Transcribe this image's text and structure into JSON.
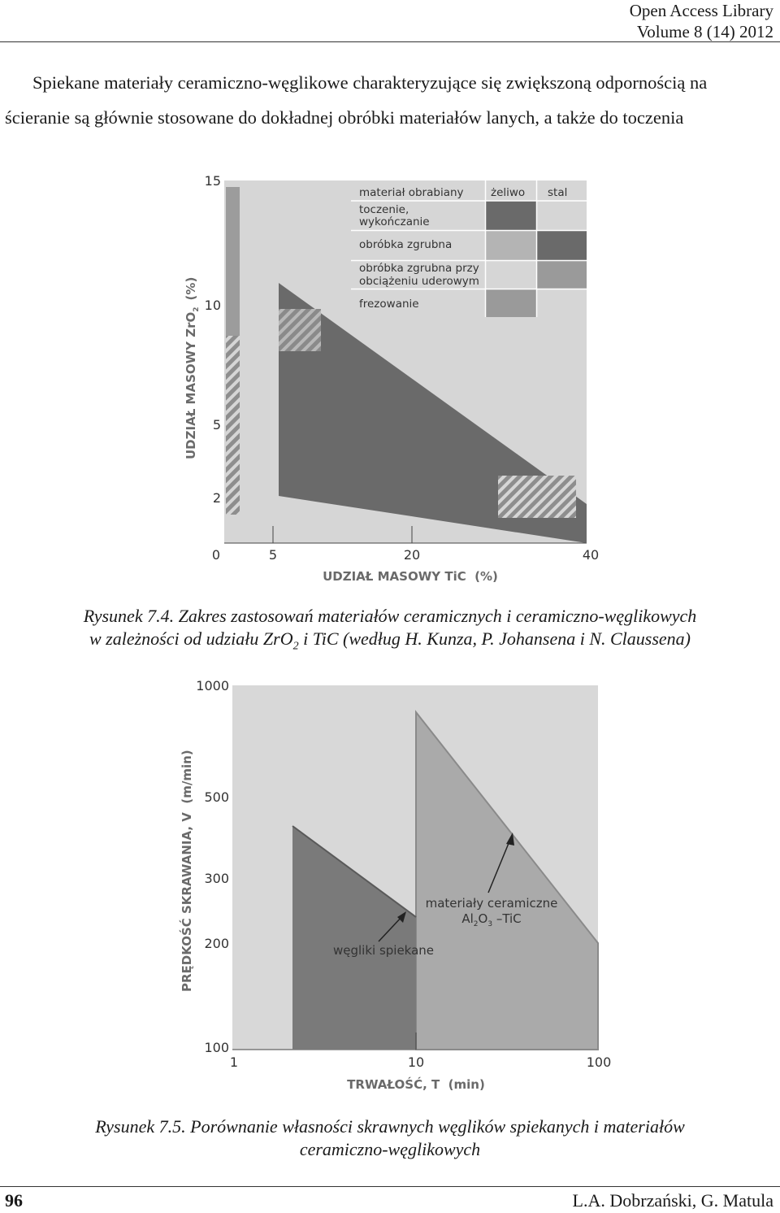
{
  "header": {
    "journal": "Open Access Library",
    "volume": "Volume 8 (14) 2012"
  },
  "body_text": {
    "line1": "Spiekane materiały ceramiczno-węglikowe charakteryzujące się zwiększoną odpornością na",
    "line2": "ścieranie są głównie stosowane do dokładnej obróbki materiałów lanych, a także do toczenia"
  },
  "figure1": {
    "caption_label": "Rysunek 7.4.",
    "caption_line1": " Zakres zastosowań materiałów ceramicznych i ceramiczno-węglikowych",
    "caption_line2_a": "w zależności od udziału ZrO",
    "caption_line2_sub": "2",
    "caption_line2_b": " i TiC (według H. Kunza, P. Johansena i N. Claussena)",
    "ylabel_main": "UDZIAŁ MASOWY ZrO",
    "ylabel_sub": "2",
    "ylabel_unit": "(%)",
    "xlabel": "UDZIAŁ MASOWY TiC  (%)",
    "y_ticks": [
      "15",
      "10",
      "5",
      "2"
    ],
    "x_ticks": [
      "0",
      "5",
      "20",
      "40"
    ],
    "legend": {
      "header_material": "materiał obrabiany",
      "header_col1": "żeliwo",
      "header_col2": "stal",
      "row1_line1": "toczenie,",
      "row1_line2": "wykończanie",
      "row2": "obróbka zgrubna",
      "row3_line1": "obróbka zgrubna przy",
      "row3_line2": "obciążeniu uderowym",
      "row4": "frezowanie"
    },
    "colors": {
      "panel": "#d6d6d6",
      "dark": "#6a6a6a",
      "medium": "#9a9a9a",
      "light": "#b4b4b4"
    }
  },
  "figure2": {
    "caption_label": "Rysunek 7.5.",
    "caption_line1": " Porównanie własności skrawnych węglików spiekanych i materiałów",
    "caption_line2": "ceramiczno-węglikowych",
    "ylabel": "PRĘDKOŚĆ SKRAWANIA, V  (m/min)",
    "xlabel": "TRWAŁOŚĆ, T  (min)",
    "y_ticks": [
      "1000",
      "500",
      "300",
      "200",
      "100"
    ],
    "x_ticks": [
      "1",
      "10",
      "100"
    ],
    "label_ceramic_line1": "materiały ceramiczne",
    "label_ceramic_line2_a": "Al",
    "label_ceramic_sub1": "2",
    "label_ceramic_line2_b": "O",
    "label_ceramic_sub2": "3",
    "label_ceramic_line2_c": " –TiC",
    "label_carbide": "węgliki spiekane",
    "colors": {
      "panel": "#d8d8d8",
      "carbide": "#7a7a7a",
      "ceramic": "#aaaaaa"
    }
  },
  "footer": {
    "page_number": "96",
    "authors": "L.A. Dobrzański, G. Matula"
  }
}
